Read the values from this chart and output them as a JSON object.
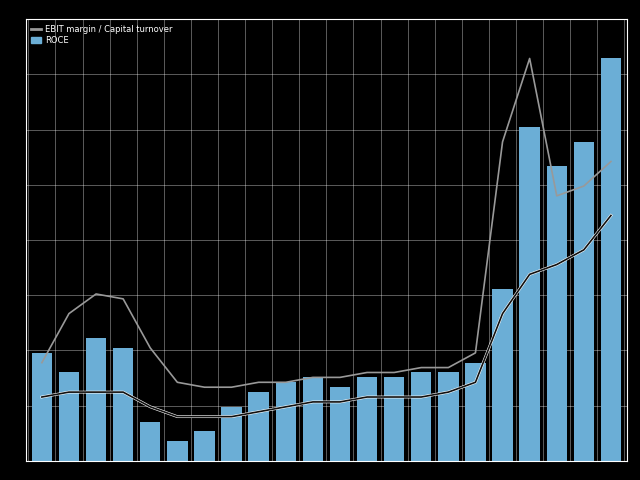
{
  "background_color": "#000000",
  "plot_bg_color": "#000000",
  "bar_color": "#6baed6",
  "line1_color": "#999999",
  "line2_color": "#111111",
  "bars": [
    22,
    18,
    25,
    23,
    8,
    4,
    6,
    11,
    14,
    16,
    17,
    15,
    17,
    17,
    18,
    18,
    20,
    35,
    68,
    60,
    65,
    82
  ],
  "line1_pct": [
    20,
    30,
    34,
    33,
    23,
    16,
    15,
    15,
    16,
    16,
    17,
    17,
    18,
    18,
    19,
    19,
    22,
    65,
    82,
    54,
    56,
    61
  ],
  "line2_pct": [
    13,
    14,
    14,
    14,
    11,
    9,
    9,
    9,
    10,
    11,
    12,
    12,
    13,
    13,
    13,
    14,
    16,
    30,
    38,
    40,
    43,
    50
  ],
  "ylim_bars": [
    0,
    90
  ],
  "ylim_pct": [
    0,
    90
  ],
  "n": 22,
  "legend_labels": [
    "EBIT margin / Capital turnover",
    "ROCE"
  ],
  "fig_width": 6.4,
  "fig_height": 4.8,
  "dpi": 100
}
